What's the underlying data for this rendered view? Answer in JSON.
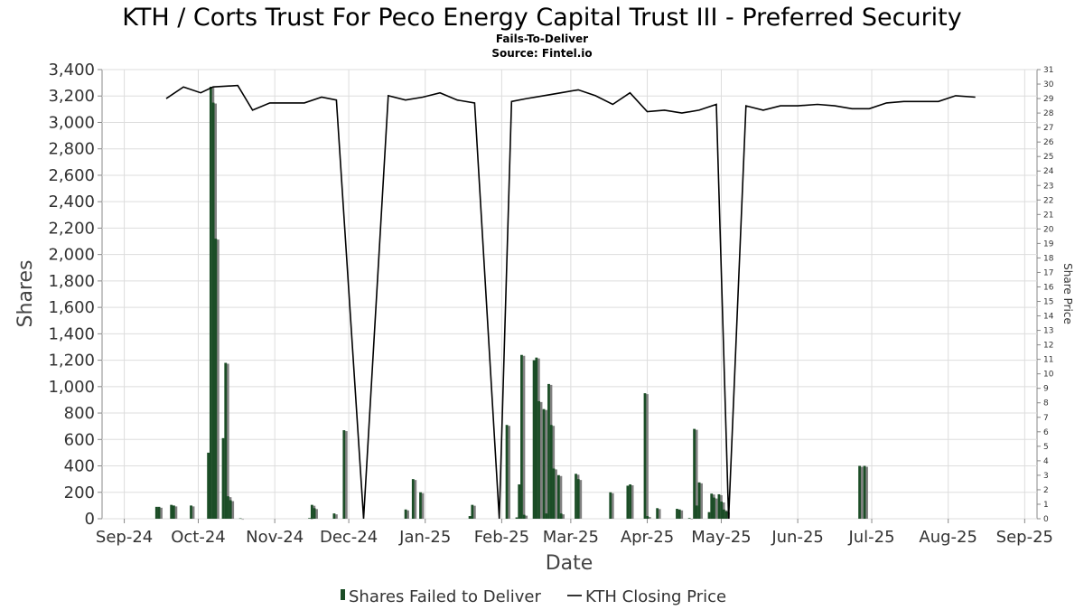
{
  "chart_data": {
    "type": "bar",
    "title": "KTH / Corts Trust For Peco Energy Capital Trust III - Preferred Security",
    "subtitle": "Fails-To-Deliver",
    "source": "Source: Fintel.io",
    "xlabel": "Date",
    "ylabel": "Shares",
    "y2label": "Share Price",
    "ylim": [
      0,
      3400
    ],
    "y2lim": [
      0,
      31
    ],
    "xlim": [
      "2024-09-16",
      "2025-09-30"
    ],
    "grid": true,
    "legend_position": "bottom",
    "x_ticks": [
      {
        "date": "2024-09-25",
        "label": "Sep-24"
      },
      {
        "date": "2024-10-25",
        "label": "Oct-24"
      },
      {
        "date": "2024-11-25",
        "label": "Nov-24"
      },
      {
        "date": "2024-12-25",
        "label": "Dec-24"
      },
      {
        "date": "2025-01-25",
        "label": "Jan-25"
      },
      {
        "date": "2025-02-25",
        "label": "Feb-25"
      },
      {
        "date": "2025-03-25",
        "label": "Mar-25"
      },
      {
        "date": "2025-04-25",
        "label": "Apr-25"
      },
      {
        "date": "2025-05-25",
        "label": "May-25"
      },
      {
        "date": "2025-06-25",
        "label": "Jun-25"
      },
      {
        "date": "2025-07-25",
        "label": "Jul-25"
      },
      {
        "date": "2025-08-25",
        "label": "Aug-25"
      },
      {
        "date": "2025-09-25",
        "label": "Sep-25"
      }
    ],
    "y_ticks": [
      0,
      200,
      400,
      600,
      800,
      1000,
      1200,
      1400,
      1600,
      1800,
      2000,
      2200,
      2400,
      2600,
      2800,
      3000,
      3200,
      3400
    ],
    "y_tick_labels": [
      "0",
      "200",
      "400",
      "600",
      "800",
      "1,000",
      "1,200",
      "1,400",
      "1,600",
      "1,800",
      "2,000",
      "2,200",
      "2,400",
      "2,600",
      "2,800",
      "3,000",
      "3,200",
      "3,400"
    ],
    "y2_ticks": [
      0,
      1,
      2,
      3,
      4,
      5,
      6,
      7,
      8,
      9,
      10,
      11,
      12,
      13,
      14,
      15,
      16,
      17,
      18,
      19,
      20,
      21,
      22,
      23,
      24,
      25,
      26,
      27,
      28,
      29,
      30,
      31
    ],
    "series": [
      {
        "name": "Shares Failed to Deliver",
        "type": "bar",
        "color": "#1b4d26",
        "shadow_color": "#808080",
        "points": [
          {
            "x": "2024-10-08",
            "y": 90
          },
          {
            "x": "2024-10-09",
            "y": 90
          },
          {
            "x": "2024-10-14",
            "y": 105
          },
          {
            "x": "2024-10-15",
            "y": 100
          },
          {
            "x": "2024-10-22",
            "y": 100
          },
          {
            "x": "2024-10-29",
            "y": 500
          },
          {
            "x": "2024-10-30",
            "y": 3270
          },
          {
            "x": "2024-10-31",
            "y": 3150
          },
          {
            "x": "2024-11-01",
            "y": 2120
          },
          {
            "x": "2024-11-04",
            "y": 610
          },
          {
            "x": "2024-11-05",
            "y": 1180
          },
          {
            "x": "2024-11-06",
            "y": 170
          },
          {
            "x": "2024-11-07",
            "y": 140
          },
          {
            "x": "2024-11-11",
            "y": 3
          },
          {
            "x": "2024-12-09",
            "y": 5
          },
          {
            "x": "2024-12-10",
            "y": 105
          },
          {
            "x": "2024-12-11",
            "y": 80
          },
          {
            "x": "2024-12-19",
            "y": 40
          },
          {
            "x": "2024-12-23",
            "y": 670
          },
          {
            "x": "2025-01-17",
            "y": 70
          },
          {
            "x": "2025-01-20",
            "y": 300
          },
          {
            "x": "2025-01-23",
            "y": 200
          },
          {
            "x": "2025-02-12",
            "y": 20
          },
          {
            "x": "2025-02-13",
            "y": 105
          },
          {
            "x": "2025-02-27",
            "y": 710
          },
          {
            "x": "2025-03-03",
            "y": 10
          },
          {
            "x": "2025-03-04",
            "y": 260
          },
          {
            "x": "2025-03-05",
            "y": 1240
          },
          {
            "x": "2025-03-06",
            "y": 30
          },
          {
            "x": "2025-03-10",
            "y": 1200
          },
          {
            "x": "2025-03-11",
            "y": 1220
          },
          {
            "x": "2025-03-12",
            "y": 890
          },
          {
            "x": "2025-03-14",
            "y": 830
          },
          {
            "x": "2025-03-15",
            "y": 40
          },
          {
            "x": "2025-03-16",
            "y": 1020
          },
          {
            "x": "2025-03-17",
            "y": 710
          },
          {
            "x": "2025-03-18",
            "y": 380
          },
          {
            "x": "2025-03-20",
            "y": 330
          },
          {
            "x": "2025-03-21",
            "y": 40
          },
          {
            "x": "2025-03-27",
            "y": 340
          },
          {
            "x": "2025-03-28",
            "y": 300
          },
          {
            "x": "2025-04-10",
            "y": 200
          },
          {
            "x": "2025-04-17",
            "y": 250
          },
          {
            "x": "2025-04-18",
            "y": 260
          },
          {
            "x": "2025-04-24",
            "y": 950
          },
          {
            "x": "2025-04-25",
            "y": 20
          },
          {
            "x": "2025-04-29",
            "y": 80
          },
          {
            "x": "2025-05-07",
            "y": 75
          },
          {
            "x": "2025-05-08",
            "y": 70
          },
          {
            "x": "2025-05-12",
            "y": 5
          },
          {
            "x": "2025-05-14",
            "y": 680
          },
          {
            "x": "2025-05-15",
            "y": 100
          },
          {
            "x": "2025-05-16",
            "y": 275
          },
          {
            "x": "2025-05-20",
            "y": 50
          },
          {
            "x": "2025-05-21",
            "y": 190
          },
          {
            "x": "2025-05-22",
            "y": 160
          },
          {
            "x": "2025-05-24",
            "y": 185
          },
          {
            "x": "2025-05-25",
            "y": 130
          },
          {
            "x": "2025-05-26",
            "y": 70
          },
          {
            "x": "2025-05-27",
            "y": 55
          },
          {
            "x": "2025-07-20",
            "y": 400
          },
          {
            "x": "2025-07-22",
            "y": 400
          }
        ]
      },
      {
        "name": "KTH Closing Price",
        "type": "line",
        "color": "#000000",
        "points": [
          {
            "x": "2024-10-12",
            "y": 29.0
          },
          {
            "x": "2024-10-19",
            "y": 29.8
          },
          {
            "x": "2024-10-26",
            "y": 29.4
          },
          {
            "x": "2024-10-31",
            "y": 29.8
          },
          {
            "x": "2024-11-10",
            "y": 29.9
          },
          {
            "x": "2024-11-16",
            "y": 28.2
          },
          {
            "x": "2024-11-23",
            "y": 28.7
          },
          {
            "x": "2024-12-07",
            "y": 28.7
          },
          {
            "x": "2024-12-14",
            "y": 29.1
          },
          {
            "x": "2024-12-20",
            "y": 28.9
          },
          {
            "x": "2024-12-31",
            "y": 0
          },
          {
            "x": "2025-01-10",
            "y": 29.2
          },
          {
            "x": "2025-01-17",
            "y": 28.9
          },
          {
            "x": "2025-01-24",
            "y": 29.1
          },
          {
            "x": "2025-01-31",
            "y": 29.4
          },
          {
            "x": "2025-02-07",
            "y": 28.9
          },
          {
            "x": "2025-02-14",
            "y": 28.7
          },
          {
            "x": "2025-02-24",
            "y": 0
          },
          {
            "x": "2025-03-01",
            "y": 28.8
          },
          {
            "x": "2025-03-07",
            "y": 29.0
          },
          {
            "x": "2025-03-14",
            "y": 29.2
          },
          {
            "x": "2025-03-21",
            "y": 29.4
          },
          {
            "x": "2025-03-28",
            "y": 29.6
          },
          {
            "x": "2025-04-04",
            "y": 29.2
          },
          {
            "x": "2025-04-11",
            "y": 28.6
          },
          {
            "x": "2025-04-18",
            "y": 29.4
          },
          {
            "x": "2025-04-25",
            "y": 28.1
          },
          {
            "x": "2025-05-02",
            "y": 28.2
          },
          {
            "x": "2025-05-09",
            "y": 28.0
          },
          {
            "x": "2025-05-16",
            "y": 28.2
          },
          {
            "x": "2025-05-23",
            "y": 28.6
          },
          {
            "x": "2025-05-28",
            "y": 0
          },
          {
            "x": "2025-06-04",
            "y": 28.5
          },
          {
            "x": "2025-06-11",
            "y": 28.2
          },
          {
            "x": "2025-06-18",
            "y": 28.5
          },
          {
            "x": "2025-06-25",
            "y": 28.5
          },
          {
            "x": "2025-07-03",
            "y": 28.6
          },
          {
            "x": "2025-07-10",
            "y": 28.5
          },
          {
            "x": "2025-07-17",
            "y": 28.3
          },
          {
            "x": "2025-07-24",
            "y": 28.3
          },
          {
            "x": "2025-07-31",
            "y": 28.7
          },
          {
            "x": "2025-08-07",
            "y": 28.8
          },
          {
            "x": "2025-08-14",
            "y": 28.8
          },
          {
            "x": "2025-08-21",
            "y": 28.8
          },
          {
            "x": "2025-08-28",
            "y": 29.2
          },
          {
            "x": "2025-09-05",
            "y": 29.1
          }
        ]
      }
    ]
  }
}
